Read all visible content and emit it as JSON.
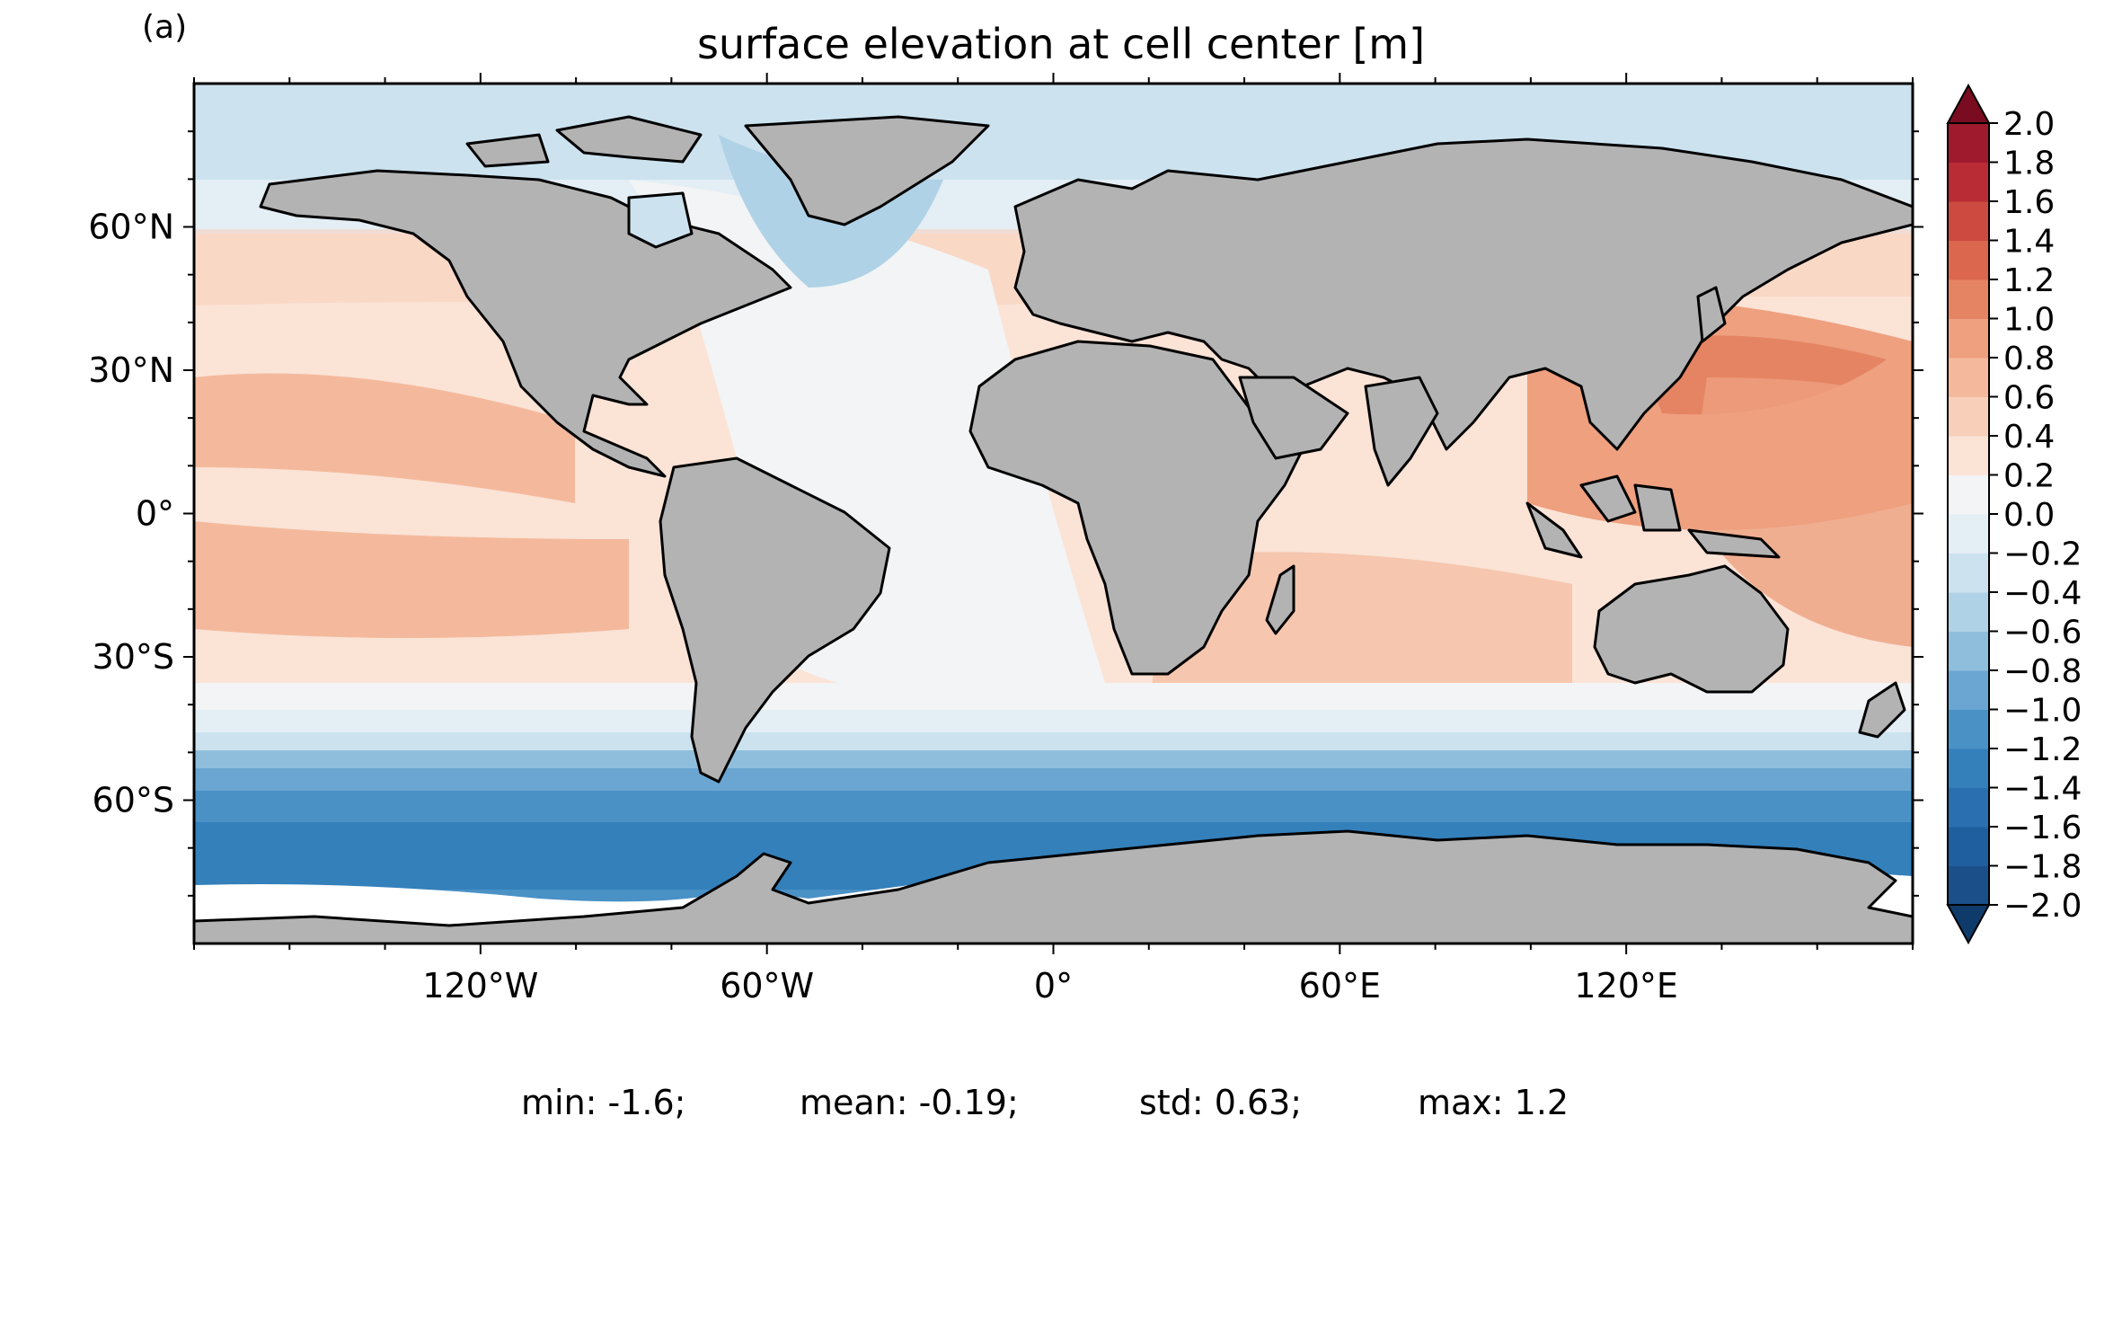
{
  "panel_label": "(a)",
  "title": "surface elevation at cell center [m]",
  "axes": {
    "x_ticks": [
      {
        "lon": -120,
        "label": "120°W"
      },
      {
        "lon": -60,
        "label": "60°W"
      },
      {
        "lon": 0,
        "label": "0°"
      },
      {
        "lon": 60,
        "label": "60°E"
      },
      {
        "lon": 120,
        "label": "120°E"
      }
    ],
    "y_ticks": [
      {
        "lat": 60,
        "label": "60°N"
      },
      {
        "lat": 30,
        "label": "30°N"
      },
      {
        "lat": 0,
        "label": "0°"
      },
      {
        "lat": -30,
        "label": "30°S"
      },
      {
        "lat": -60,
        "label": "60°S"
      }
    ],
    "lon_range": [
      -180,
      180
    ],
    "lat_range": [
      -90,
      90
    ]
  },
  "colorbar": {
    "levels": [
      -2.0,
      -1.8,
      -1.6,
      -1.4,
      -1.2,
      -1.0,
      -0.8,
      -0.6,
      -0.4,
      -0.2,
      0.0,
      0.2,
      0.4,
      0.6,
      0.8,
      1.0,
      1.2,
      1.4,
      1.6,
      1.8,
      2.0
    ],
    "labels": [
      "−2.0",
      "−1.8",
      "−1.6",
      "−1.4",
      "−1.2",
      "−1.0",
      "−0.8",
      "−0.6",
      "−0.4",
      "−0.2",
      "0.0",
      "0.2",
      "0.4",
      "0.6",
      "0.8",
      "1.0",
      "1.2",
      "1.4",
      "1.6",
      "1.8",
      "2.0"
    ],
    "colors": [
      "#1b4f8a",
      "#1f5f9f",
      "#2a6fb0",
      "#3380bb",
      "#4a91c6",
      "#6aa6d1",
      "#8fbedc",
      "#b0d2e6",
      "#cce2ef",
      "#e4eef5",
      "#f2f4f5",
      "#fbe3d6",
      "#f8d0ba",
      "#f4b99c",
      "#eea07f",
      "#e58463",
      "#da674e",
      "#cc4a3f",
      "#ba2c35",
      "#9f1a2c"
    ],
    "extend_low_color": "#0f3b6a",
    "extend_high_color": "#7a0c21"
  },
  "land_color": "#b3b3b3",
  "stats": {
    "min": "min: -1.6;",
    "mean": "mean: -0.19;",
    "std": "std: 0.63;",
    "max": "max: 1.2"
  }
}
